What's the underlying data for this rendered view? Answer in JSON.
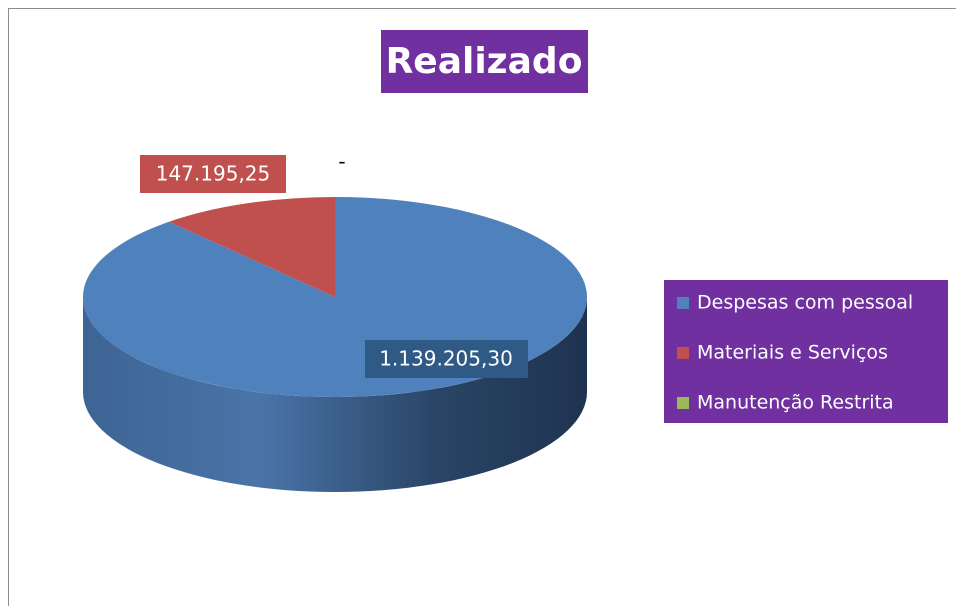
{
  "chart_data": {
    "type": "pie",
    "title": "Realizado",
    "categories": [
      "Despesas com pessoal",
      "Materiais e Serviços",
      "Manutenção Restrita"
    ],
    "values": [
      1139205.3,
      147195.25,
      0
    ],
    "value_labels": [
      "1.139.205,30",
      "147.195,25",
      "-"
    ],
    "colors": [
      "#4f81bd",
      "#c0504d",
      "#9bbb59"
    ],
    "legend": "right"
  }
}
